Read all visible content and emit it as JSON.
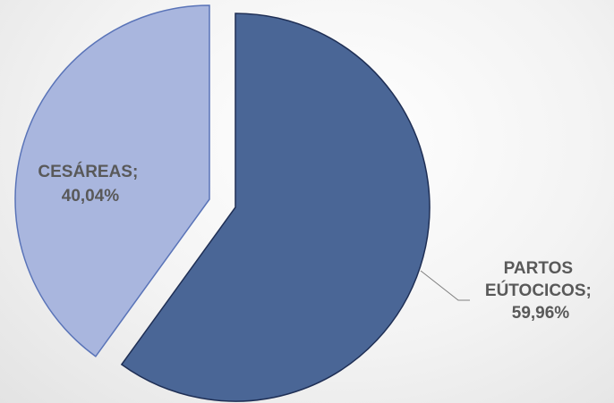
{
  "chart_data": {
    "type": "pie",
    "slices": [
      {
        "label": "PARTOS EÚTOCICOS",
        "label_lines": [
          "PARTOS",
          "EÚTOCICOS;",
          "59,96%"
        ],
        "value": 59.96,
        "color": "#4a6696"
      },
      {
        "label": "CESÁREAS",
        "label_lines": [
          "CESÁREAS;",
          "40,04%"
        ],
        "value": 40.04,
        "color": "#a9b6de"
      }
    ],
    "colors": {
      "slice_stroke_dark": "#1f2f55",
      "slice_stroke_light": "#5a74b8",
      "leader_line": "#7f7f7f",
      "label_text": "#595959"
    },
    "exploded": true,
    "start_angle": "12 o'clock, clockwise"
  }
}
